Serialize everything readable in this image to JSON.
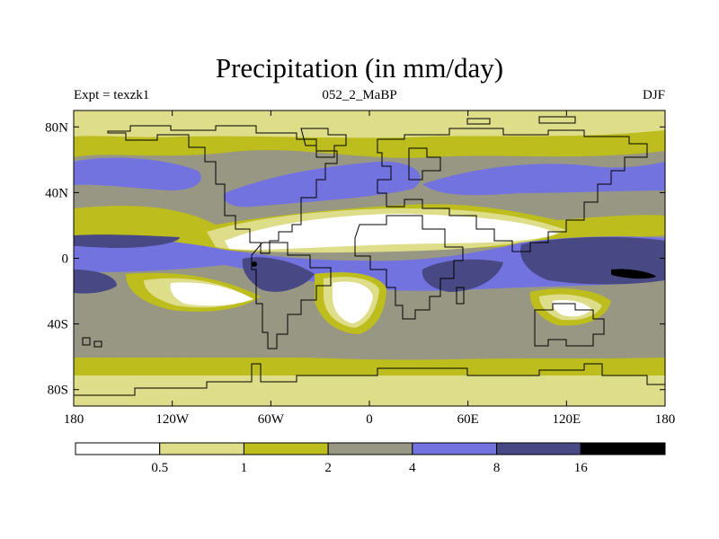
{
  "title": "Precipitation (in mm/day)",
  "left_string": "Expt = texzk1",
  "center_string": "052_2_MaBP",
  "right_string": "DJF",
  "colors": {
    "c0": "#ffffff",
    "c1": "#dedd8a",
    "c2": "#bdbd1e",
    "c3": "#979783",
    "c4": "#7373e0",
    "c5": "#484884",
    "c6": "#000000",
    "land_outline": "#000000"
  },
  "chart_data": {
    "type": "heatmap",
    "projection": "cylindrical-equidistant",
    "xlim": [
      -180,
      180
    ],
    "ylim": [
      -90,
      90
    ],
    "x_ticks": [
      {
        "value": -180,
        "label": "180"
      },
      {
        "value": -120,
        "label": "120W"
      },
      {
        "value": -60,
        "label": "60W"
      },
      {
        "value": 0,
        "label": "0"
      },
      {
        "value": 60,
        "label": "60E"
      },
      {
        "value": 120,
        "label": "120E"
      },
      {
        "value": 180,
        "label": "180"
      }
    ],
    "y_ticks": [
      {
        "value": 80,
        "label": "80N"
      },
      {
        "value": 40,
        "label": "40N"
      },
      {
        "value": 0,
        "label": "0"
      },
      {
        "value": -40,
        "label": "40S"
      },
      {
        "value": -80,
        "label": "80S"
      }
    ],
    "colorbar": {
      "levels": [
        0.5,
        1,
        2,
        4,
        8,
        16
      ],
      "labels": [
        "0.5",
        "1",
        "2",
        "4",
        "8",
        "16"
      ],
      "colors": [
        "#ffffff",
        "#dedd8a",
        "#bdbd1e",
        "#979783",
        "#7373e0",
        "#484884",
        "#000000"
      ]
    }
  }
}
